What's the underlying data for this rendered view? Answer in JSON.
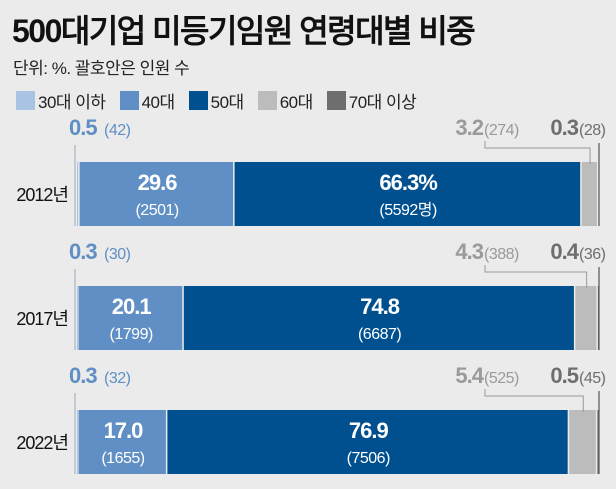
{
  "chart_data": {
    "type": "bar",
    "orientation": "horizontal-stacked-100",
    "title": "500대기업 미등기임원 연령대별 비중",
    "subtitle": "단위: %. 괄호안은 인원 수",
    "categories": [
      "2012년",
      "2017년",
      "2022년"
    ],
    "series": [
      {
        "name": "30대 이하",
        "color": "#a9c4e2",
        "label_color": "#5f8fc4",
        "values": [
          0.5,
          0.3,
          0.3
        ],
        "counts": [
          "(42)",
          "(30)",
          "(32)"
        ]
      },
      {
        "name": "40대",
        "color": "#5f8fc4",
        "values": [
          29.6,
          20.1,
          17.0
        ],
        "counts": [
          "(2501)",
          "(1799)",
          "(1655)"
        ]
      },
      {
        "name": "50대",
        "color": "#00508f",
        "values": [
          66.3,
          74.8,
          76.9
        ],
        "counts": [
          "(5592명)",
          "(6687)",
          "(7506)"
        ],
        "value_labels": [
          "66.3%",
          "74.8",
          "76.9"
        ]
      },
      {
        "name": "60대",
        "color": "#bcbcbc",
        "label_color": "#9a9a9a",
        "values": [
          3.2,
          4.3,
          5.4
        ],
        "counts": [
          "(274)",
          "(388)",
          "(525)"
        ]
      },
      {
        "name": "70대 이상",
        "color": "#6e6e6e",
        "label_color": "#6e6e6e",
        "values": [
          0.3,
          0.4,
          0.5
        ],
        "counts": [
          "(28)",
          "(36)",
          "(45)"
        ]
      }
    ],
    "xlim": [
      0,
      100
    ],
    "legend": "top-left"
  }
}
